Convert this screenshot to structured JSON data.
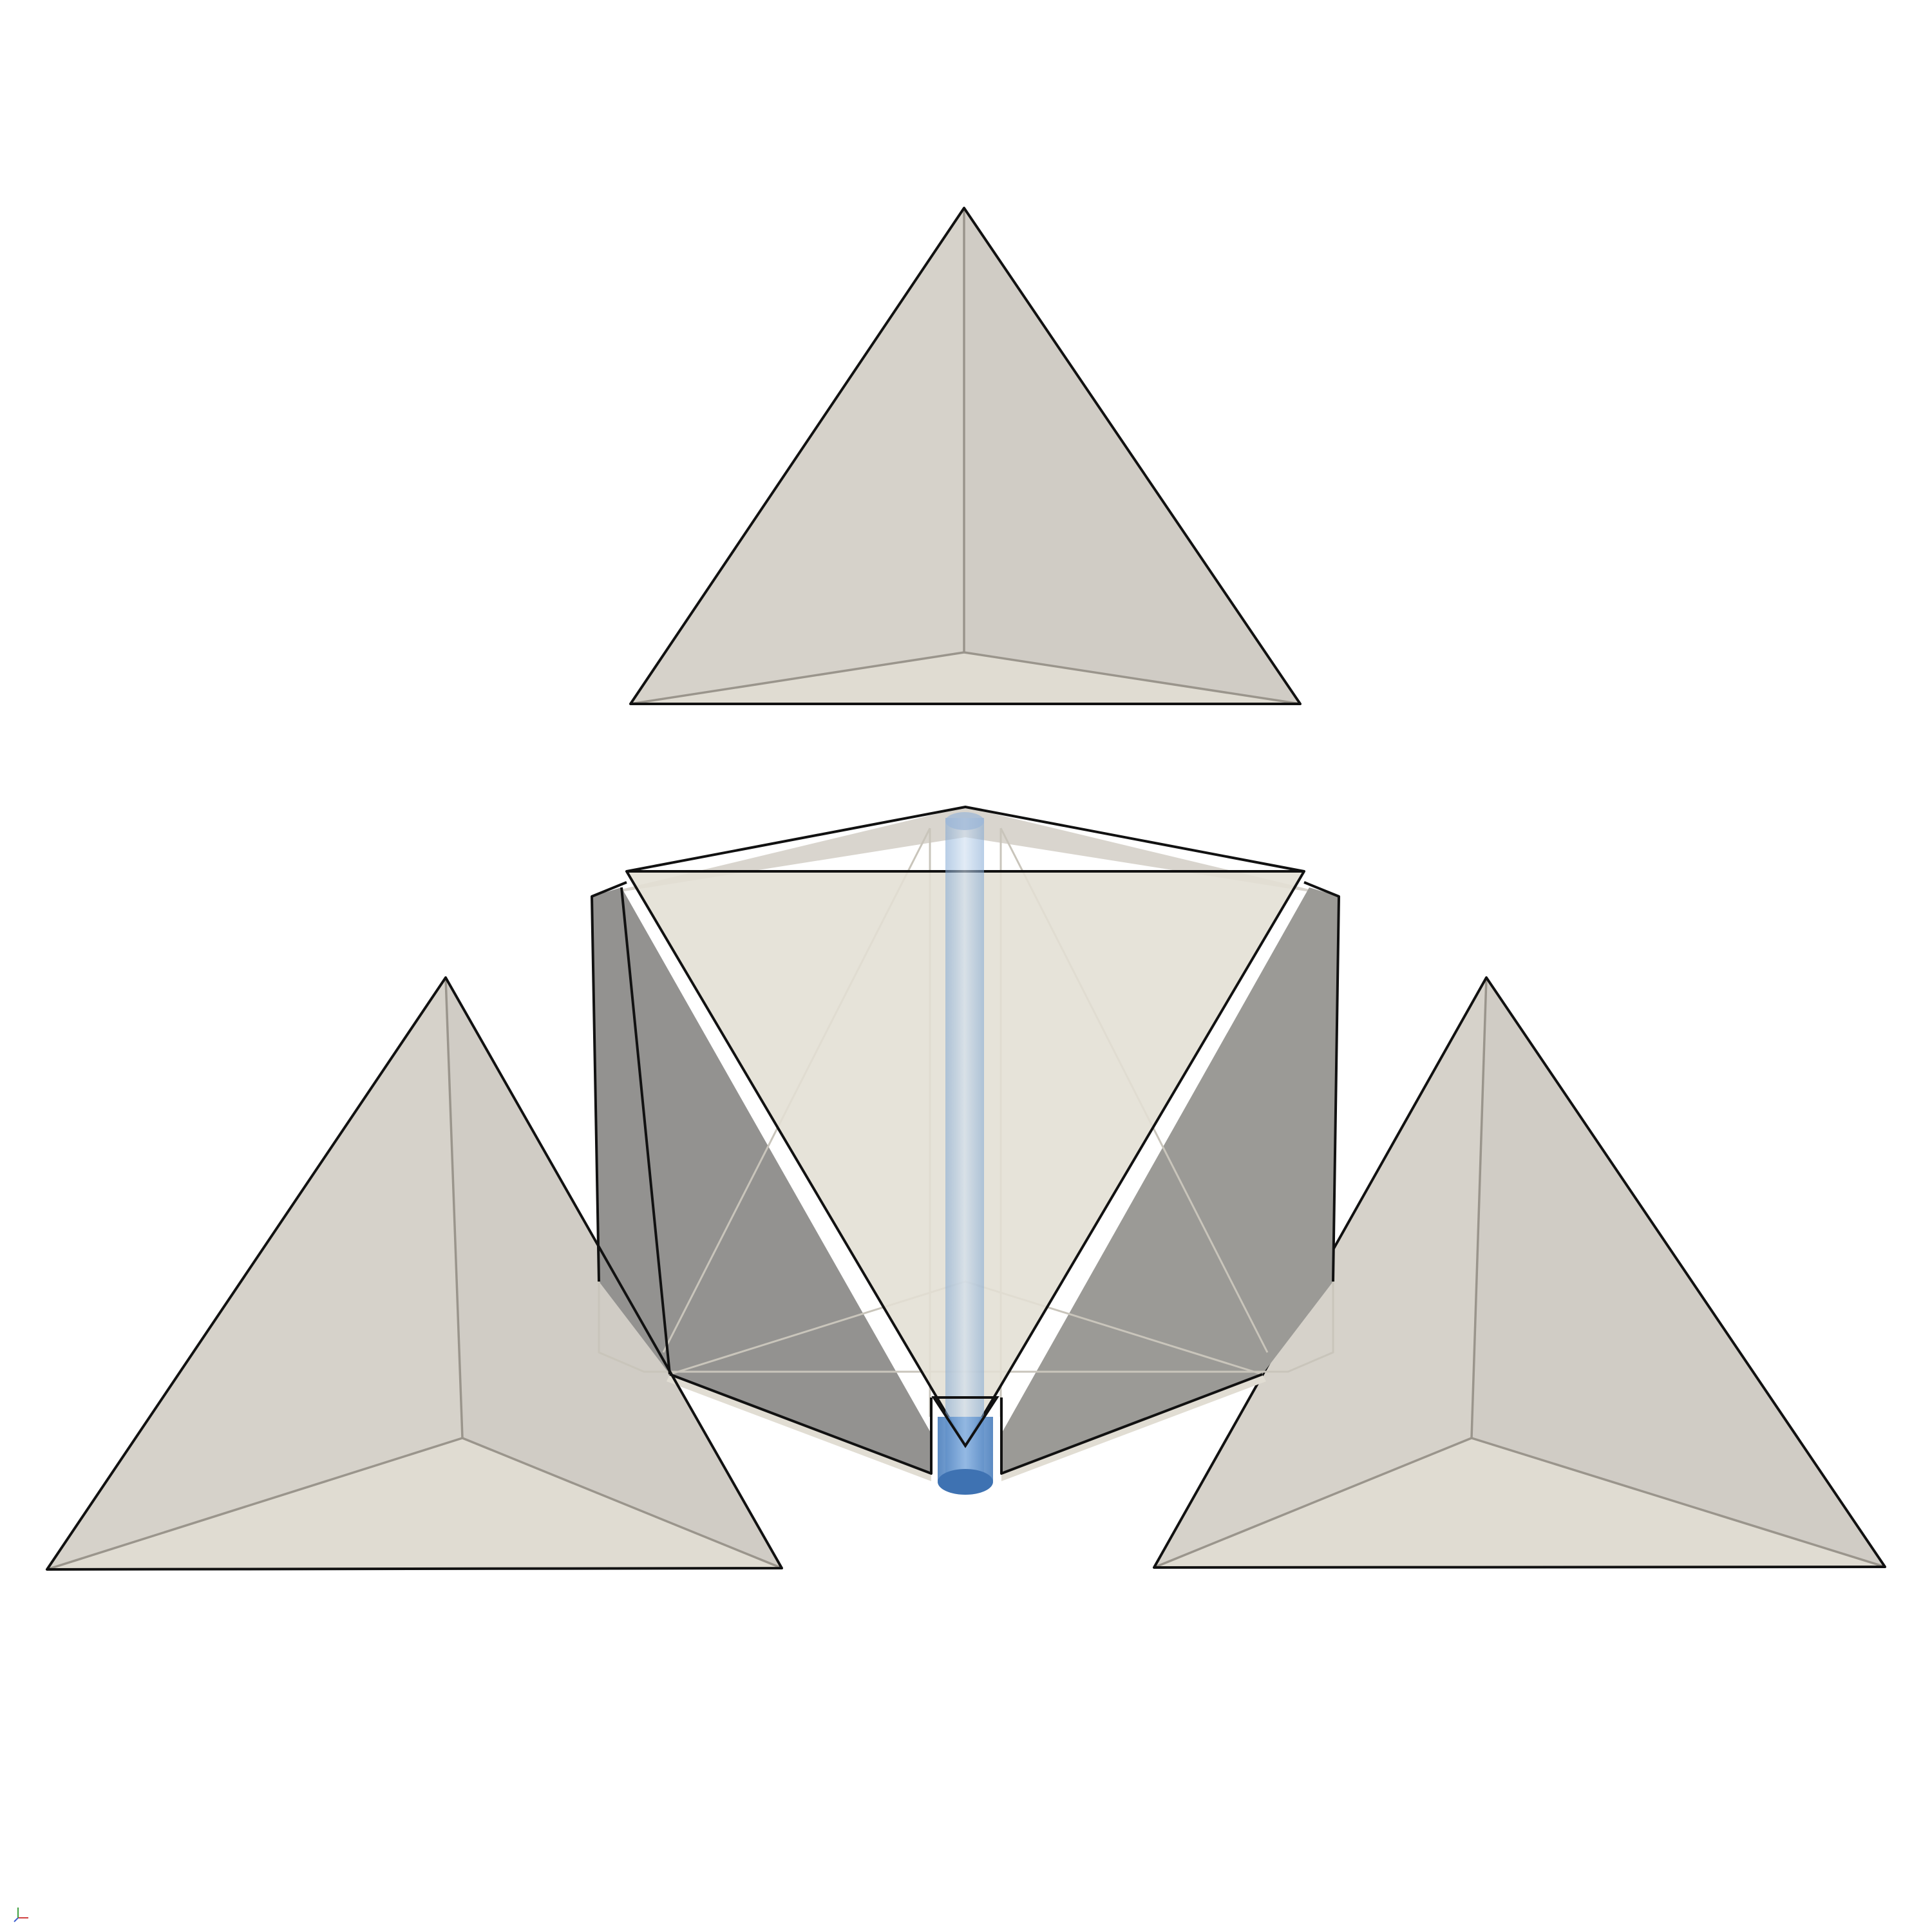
{
  "colors": {
    "background": "#ffffff",
    "face_light": "#e2ded3",
    "face_mid": "#d5d1c9",
    "face_dark": "#96958f",
    "rod": "#5b8fcc"
  }
}
